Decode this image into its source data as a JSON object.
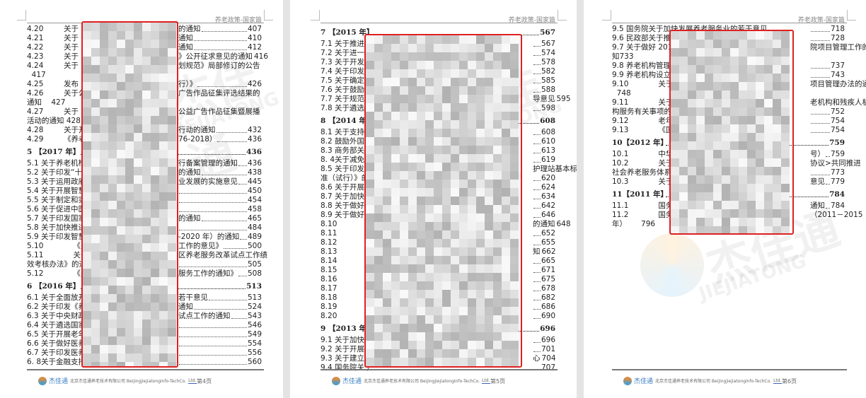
{
  "header_title": "养老政策-国家篇",
  "watermark": {
    "brand_cn": "杰佳通",
    "brand_en": "JIEJIATONG"
  },
  "footer": {
    "brand": "杰佳通",
    "company": "北京杰佳通养老技术有限公司 Beijingjiejiatonginfo-TechCo.",
    "suffix": "Ltd."
  },
  "colors": {
    "highlight_box": "#e02020"
  },
  "pages": [
    {
      "page_label": "第4页",
      "rows": [
        {
          "n": "4.20",
          "l": "关于",
          "r": "的通知",
          "p": "407"
        },
        {
          "n": "4.21",
          "l": "关于",
          "r": "通知",
          "p": "410"
        },
        {
          "n": "4.22",
          "l": "关于",
          "r": "通知",
          "p": "412"
        },
        {
          "n": "4.23",
          "l": "关于",
          "r": "》公开征求意见的通知",
          "p": "416"
        },
        {
          "n": "4.24",
          "l": "关于",
          "r": "划规范》局部修订的公告"
        },
        {
          "l": "  417"
        },
        {
          "n": "4.25",
          "l": "发布《",
          "r": "行）》",
          "p": "426"
        },
        {
          "n": "4.26",
          "l": "关于公",
          "r": "广告作品征集评选结果的"
        },
        {
          "l": "通知    427"
        },
        {
          "n": "4.27",
          "l": "关于",
          "r": "公益广告作品征集暨展播"
        },
        {
          "l": "活动的通知 428"
        },
        {
          "n": "4.28",
          "l": "关于开",
          "r": "行动的通知",
          "p": "432"
        },
        {
          "n": "4.29",
          "l": "《养老",
          "r": "76-2018）",
          "p": "436"
        },
        {
          "h": true,
          "l": "5 【2017 年】",
          "p": "436"
        },
        {
          "l": "5.1 关于养老机构",
          "r": "行备案管理的通知",
          "p": "436"
        },
        {
          "l": "5.2 关于印发“十三",
          "r": "的通知",
          "p": "438"
        },
        {
          "l": "5.3 关于运用政府",
          "r": "业发展的实施意见",
          "p": "445"
        },
        {
          "l": "5.4 关于开展智慧",
          "p": "450"
        },
        {
          "l": "5.5 关于制定和实",
          "p": "454"
        },
        {
          "l": "5.6 关于促进中医",
          "p": "458"
        },
        {
          "l": "5.7 关于印发国家",
          "r": "的通知",
          "p": "465"
        },
        {
          "l": "5.8 关于加快推进",
          "p": "484"
        },
        {
          "l": "5.9 关于印发智慧",
          "r": "-2020 年）的通知",
          "p": "489"
        },
        {
          "n": "5.10",
          "l": "    《关于",
          "r": "工作的意见》",
          "p": "500"
        },
        {
          "n": "5.11",
          "l": "    关于印",
          "r": "区养老服务改革试点工作绩"
        },
        {
          "l": "效考核办法》的通",
          "p": "505"
        },
        {
          "n": "5.12",
          "l": "    《关于",
          "r": "服务工作的通知》",
          "p": "508"
        },
        {
          "h": true,
          "l": "6 【2016 年】",
          "p": "513"
        },
        {
          "l": "6.1 关于全面放开",
          "r": "若干意见",
          "p": "513"
        },
        {
          "l": "6.2 关于印发《养老",
          "r": "通知",
          "p": "524"
        },
        {
          "l": "6.3 关于中央财政",
          "r": "试点工作的通知",
          "p": "543"
        },
        {
          "l": "6.4 关于遴选国家",
          "p": "546"
        },
        {
          "l": "6.5 关于开展老年人",
          "p": "549"
        },
        {
          "l": "6.6 关于做好医养",
          "p": "554"
        },
        {
          "l": "6.7 关于印发医养",
          "p": "556"
        },
        {
          "l": "6. 8关于金融支持",
          "p": "560"
        }
      ]
    },
    {
      "page_label": "第5页",
      "rows": [
        {
          "h": true,
          "l": "7 【2015 年】",
          "p": "567"
        },
        {
          "l": "7.1 关于推进医",
          "p": "567"
        },
        {
          "l": "7.2 关于进一步",
          "p": "574"
        },
        {
          "l": "7.3 关于开发性",
          "p": "578"
        },
        {
          "l": "7.4 关于印发<养",
          "p": "582"
        },
        {
          "l": "7.5 关于确定计",
          "p": "585"
        },
        {
          "l": "7.6 关于鼓励民",
          "p": "588"
        },
        {
          "l": "7.7 关于规范养",
          "r": "导意见",
          "p": "595"
        },
        {
          "l": "7.8 关于遴选全",
          "p": "598"
        },
        {
          "h": true,
          "l": "8 【2014 年】",
          "p": "608"
        },
        {
          "l": "8.1 关于支持文化",
          "p": "608"
        },
        {
          "l": "8.2 鼓励外国投资",
          "p": "610"
        },
        {
          "l": "8.3 商务部关于推",
          "p": "613"
        },
        {
          "l": "8. 4关于减免养老",
          "p": "619"
        },
        {
          "l": "8.5 关于印发《",
          "r": "护理站基本标"
        },
        {
          "l": "准（试行）》的",
          "p": "620"
        },
        {
          "l": "8.6 关于开展养",
          "p": "624"
        },
        {
          "l": "8.7 关于加快推",
          "p": "634"
        },
        {
          "l": "8.8 关于做好政",
          "p": "642"
        },
        {
          "l": "8.9 关于做好养老",
          "p": "646"
        },
        {
          "n": "8.10",
          "l": "    关于",
          "r": "的通知",
          "p": "648"
        },
        {
          "n": "8.11",
          "l": "    关于",
          "p": "652"
        },
        {
          "n": "8.12",
          "l": "    关于",
          "p": "655"
        },
        {
          "n": "8.13",
          "l": "    关于",
          "r": "知",
          "p": "662"
        },
        {
          "n": "8.14",
          "l": "    关于",
          "p": "665"
        },
        {
          "n": "8.15",
          "l": "    关于推",
          "p": "671"
        },
        {
          "n": "8.16",
          "l": "    关于推",
          "p": "675"
        },
        {
          "n": "8.17",
          "l": "    关于印",
          "p": "678"
        },
        {
          "n": "8.18",
          "l": "    关于",
          "p": "682"
        },
        {
          "n": "8.19",
          "l": "    关于",
          "p": "686"
        },
        {
          "n": "8.20",
          "l": "    关于",
          "p": "690"
        },
        {
          "h": true,
          "l": "9 【2013 年】",
          "p": "696"
        },
        {
          "l": "9.1 关于加快社会",
          "p": "696"
        },
        {
          "l": "9.2 关于开展公",
          "p": "701"
        },
        {
          "l": "9.3 关于建立养",
          "r": "心",
          "p": "704"
        },
        {
          "l": "9.4 国务院关于",
          "p": "707"
        }
      ]
    },
    {
      "page_label": "第6页",
      "rows": [
        {
          "l": "9.5 国务院关于加快发展养老服务业的若干意见",
          "p": "718"
        },
        {
          "l": "9.6 民政部关于推进养",
          "p": "728"
        },
        {
          "l": "9.7 关于做好 2013 年",
          "r": "院项目管理工作的通"
        },
        {
          "l": "知733"
        },
        {
          "l": "9.8 养老机构管理办",
          "p": "737"
        },
        {
          "l": "9.9 养老机构设立许",
          "p": "743"
        },
        {
          "n": "9.10",
          "l": "    关于印",
          "r": "项目管理办法的通知"
        },
        {
          "l": "  748"
        },
        {
          "n": "9.11",
          "l": "    关于鼓",
          "r": "老机构和残疾人机"
        },
        {
          "l": "构服务有关事项的",
          "p": "752"
        },
        {
          "n": "9.12",
          "l": "    老年人",
          "p": "754"
        },
        {
          "n": "9.13",
          "l": "    《国务",
          "p": "754"
        },
        {
          "h": true,
          "l": "10【2012 年】",
          "p": "759"
        },
        {
          "n": "10.1",
          "l": "    中华人",
          "r": "号）",
          "p": "759"
        },
        {
          "n": "10.2",
          "l": "    关于贯",
          "r": "协议>共同推进"
        },
        {
          "l": "社会养老服务体系",
          "p": "773"
        },
        {
          "n": "10.3",
          "l": "    关于鼓",
          "r": "意见",
          "p": "779"
        },
        {
          "h": true,
          "l": "11【2011 年】",
          "p": "784"
        },
        {
          "n": "11.1",
          "l": "    国务院",
          "r": "通知",
          "p": "784"
        },
        {
          "n": "11.2",
          "l": "    国务院",
          "r": "（2011－2015"
        },
        {
          "l": "年）      796"
        }
      ]
    }
  ]
}
